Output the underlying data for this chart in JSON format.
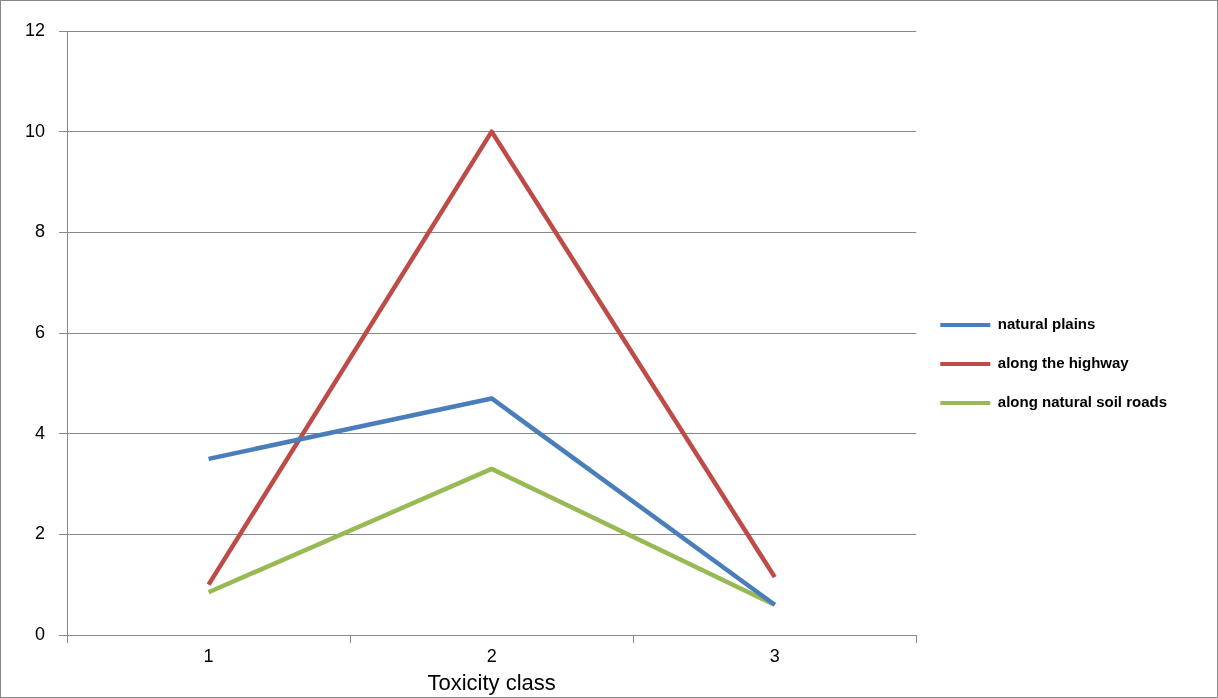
{
  "chart_data": {
    "type": "line",
    "xlabel": "Toxicity class",
    "categories": [
      "1",
      "2",
      "3"
    ],
    "series": [
      {
        "name": "natural plains",
        "color": "#4a7ebb",
        "values": [
          3.5,
          4.7,
          0.6
        ]
      },
      {
        "name": "along the highway",
        "color": "#be4b48",
        "values": [
          1.0,
          10.0,
          1.15
        ]
      },
      {
        "name": "along natural soil roads",
        "color": "#98b954",
        "values": [
          0.85,
          3.3,
          0.6
        ]
      }
    ],
    "ylim": [
      0,
      12
    ],
    "yticks": [
      0,
      2,
      4,
      6,
      8,
      10,
      12
    ],
    "grid": "y",
    "legend": "right",
    "marker": "none",
    "line_style": "solid"
  }
}
